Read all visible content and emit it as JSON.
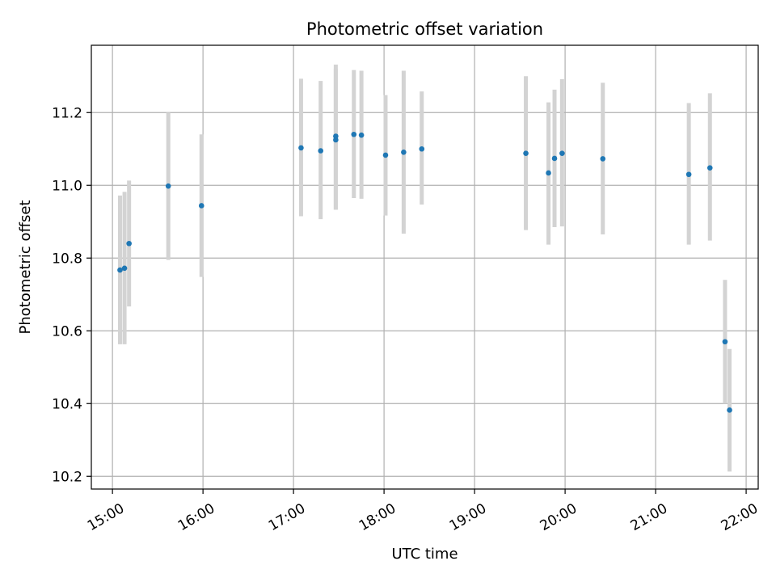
{
  "chart_data": {
    "type": "scatter",
    "title": "Photometric offset variation",
    "xlabel": "UTC time",
    "ylabel": "Photometric offset",
    "x_unit": "UTC hours",
    "xlim": [
      "14:46",
      "22:08"
    ],
    "ylim": [
      10.165,
      11.385
    ],
    "x_ticks": [
      "15:00",
      "16:00",
      "17:00",
      "18:00",
      "19:00",
      "20:00",
      "21:00",
      "22:00"
    ],
    "y_ticks": [
      10.2,
      10.4,
      10.6,
      10.8,
      11.0,
      11.2
    ],
    "grid": true,
    "legend": "none",
    "colors": {
      "point": "#1f77b4",
      "errorbar": "#d3d3d3",
      "grid": "#b0b0b0"
    },
    "points": [
      {
        "x": "15:05",
        "y": 10.767,
        "ylo": 10.563,
        "yhi": 10.972
      },
      {
        "x": "15:08",
        "y": 10.772,
        "ylo": 10.563,
        "yhi": 10.982
      },
      {
        "x": "15:11",
        "y": 10.84,
        "ylo": 10.667,
        "yhi": 11.013
      },
      {
        "x": "15:37",
        "y": 10.998,
        "ylo": 10.795,
        "yhi": 11.2
      },
      {
        "x": "15:59",
        "y": 10.944,
        "ylo": 10.748,
        "yhi": 11.14
      },
      {
        "x": "17:05",
        "y": 11.103,
        "ylo": 10.915,
        "yhi": 11.293
      },
      {
        "x": "17:18",
        "y": 11.095,
        "ylo": 10.907,
        "yhi": 11.287
      },
      {
        "x": "17:28",
        "y": 11.135,
        "ylo": 10.933,
        "yhi": 11.332
      },
      {
        "x": "17:28",
        "y": 11.125,
        "ylo": 10.933,
        "yhi": 11.32
      },
      {
        "x": "17:40",
        "y": 11.14,
        "ylo": 10.965,
        "yhi": 11.317
      },
      {
        "x": "17:45",
        "y": 11.138,
        "ylo": 10.963,
        "yhi": 11.315
      },
      {
        "x": "18:01",
        "y": 11.083,
        "ylo": 10.917,
        "yhi": 11.248
      },
      {
        "x": "18:13",
        "y": 11.091,
        "ylo": 10.867,
        "yhi": 11.315
      },
      {
        "x": "18:25",
        "y": 11.1,
        "ylo": 10.947,
        "yhi": 11.258
      },
      {
        "x": "19:34",
        "y": 11.088,
        "ylo": 10.877,
        "yhi": 11.3
      },
      {
        "x": "19:49",
        "y": 11.034,
        "ylo": 10.837,
        "yhi": 11.228
      },
      {
        "x": "19:53",
        "y": 11.074,
        "ylo": 10.885,
        "yhi": 11.263
      },
      {
        "x": "19:58",
        "y": 11.088,
        "ylo": 10.887,
        "yhi": 11.292
      },
      {
        "x": "20:25",
        "y": 11.073,
        "ylo": 10.865,
        "yhi": 11.282
      },
      {
        "x": "21:22",
        "y": 11.03,
        "ylo": 10.837,
        "yhi": 11.226
      },
      {
        "x": "21:36",
        "y": 11.048,
        "ylo": 10.848,
        "yhi": 11.253
      },
      {
        "x": "21:46",
        "y": 10.57,
        "ylo": 10.4,
        "yhi": 10.74
      },
      {
        "x": "21:49",
        "y": 10.382,
        "ylo": 10.213,
        "yhi": 10.55
      }
    ]
  }
}
